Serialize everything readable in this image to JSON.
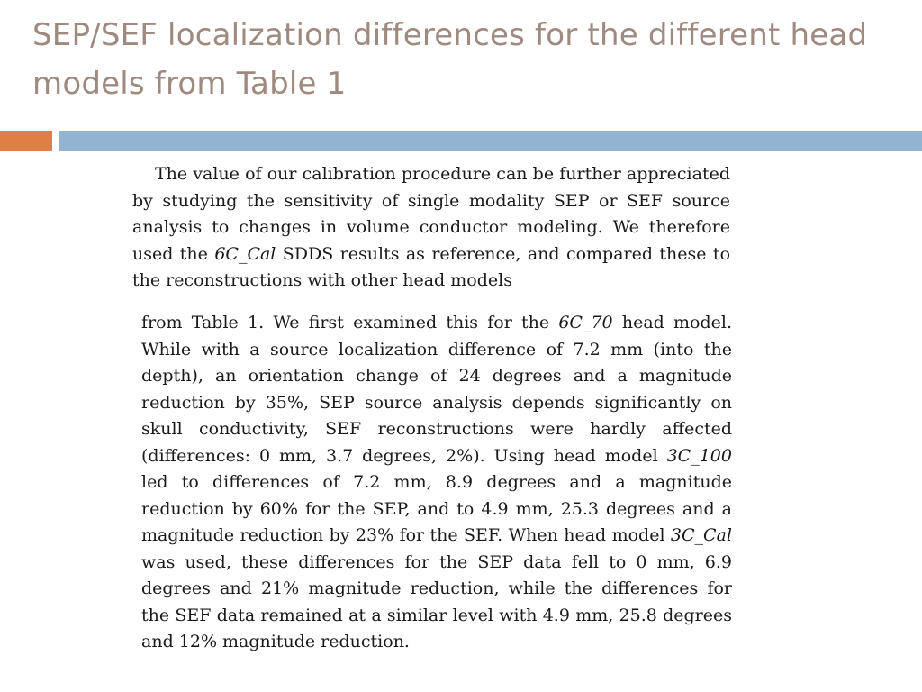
{
  "slide": {
    "title": "SEP/SEF localization differences for the different head models from Table 1"
  },
  "excerpt_1": [
    {
      "text": "The value of our calibration procedure can be further appreciated by studying the sensitivity of single modality SEP or SEF source analysis to changes in volume conductor modeling. We therefore used the ",
      "italic": false
    },
    {
      "text": "6C_Cal",
      "italic": true
    },
    {
      "text": " SDDS results as reference, and compared these to the reconstructions with other head models",
      "italic": false
    }
  ],
  "excerpt_2": [
    {
      "text": "from Table 1. We first examined this for the ",
      "italic": false
    },
    {
      "text": "6C_70",
      "italic": true
    },
    {
      "text": " head model. While with a source localization difference of 7.2 mm (into the depth), an orientation change of 24 degrees and a magnitude reduction by 35%, SEP source analysis depends significantly on skull conductivity, SEF reconstructions were hardly affected (differences: 0 mm, 3.7 degrees, 2%). Using head model ",
      "italic": false
    },
    {
      "text": "3C_100",
      "italic": true
    },
    {
      "text": " led to differences of 7.2 mm, 8.9 degrees and a magnitude reduction by 60% for the SEP, and to 4.9 mm, 25.3 degrees and a magnitude reduction by 23% for the SEF. When head model ",
      "italic": false
    },
    {
      "text": "3C_Cal",
      "italic": true
    },
    {
      "text": " was used, these differences for the SEP data fell to 0 mm, 6.9 degrees and 21% magnitude reduction, while the differences for the SEF data remained at a similar level with 4.9 mm, 25.8 degrees and 12% magnitude reduction.",
      "italic": false
    }
  ]
}
